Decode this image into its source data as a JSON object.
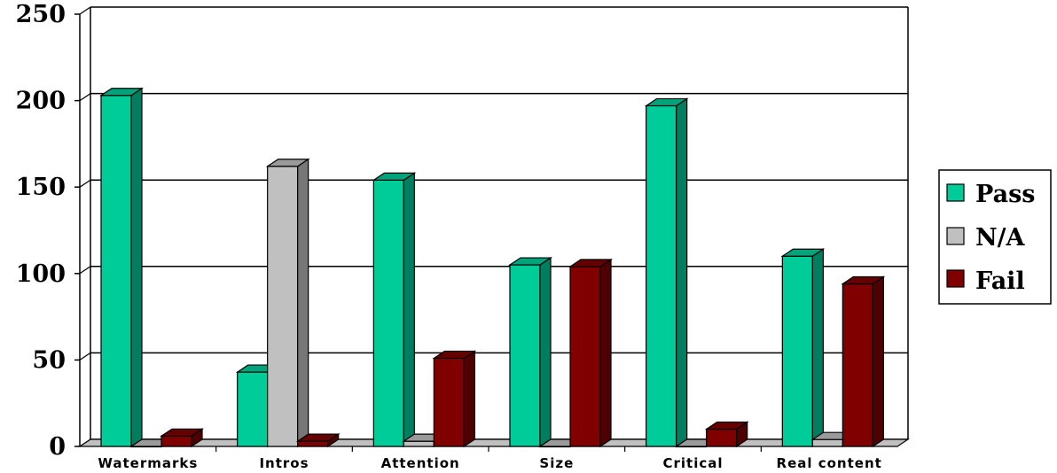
{
  "chart_data": {
    "type": "bar",
    "title": "",
    "xlabel": "",
    "ylabel": "",
    "ylim": [
      0,
      250
    ],
    "yticks": [
      0,
      50,
      100,
      150,
      200,
      250
    ],
    "grid": true,
    "style": "3d-clustered",
    "legend_position": "right",
    "categories": [
      "Watermarks",
      "Intros",
      "Attention",
      "Size",
      "Critical",
      "Real content"
    ],
    "series": [
      {
        "name": "Pass",
        "color": "#00cc99",
        "values": [
          203,
          43,
          154,
          105,
          197,
          110
        ]
      },
      {
        "name": "N/A",
        "color": "#c0c0c0",
        "values": [
          0,
          162,
          3,
          0,
          0,
          4
        ]
      },
      {
        "name": "Fail",
        "color": "#800000",
        "values": [
          6,
          3,
          51,
          104,
          10,
          94
        ]
      }
    ]
  }
}
